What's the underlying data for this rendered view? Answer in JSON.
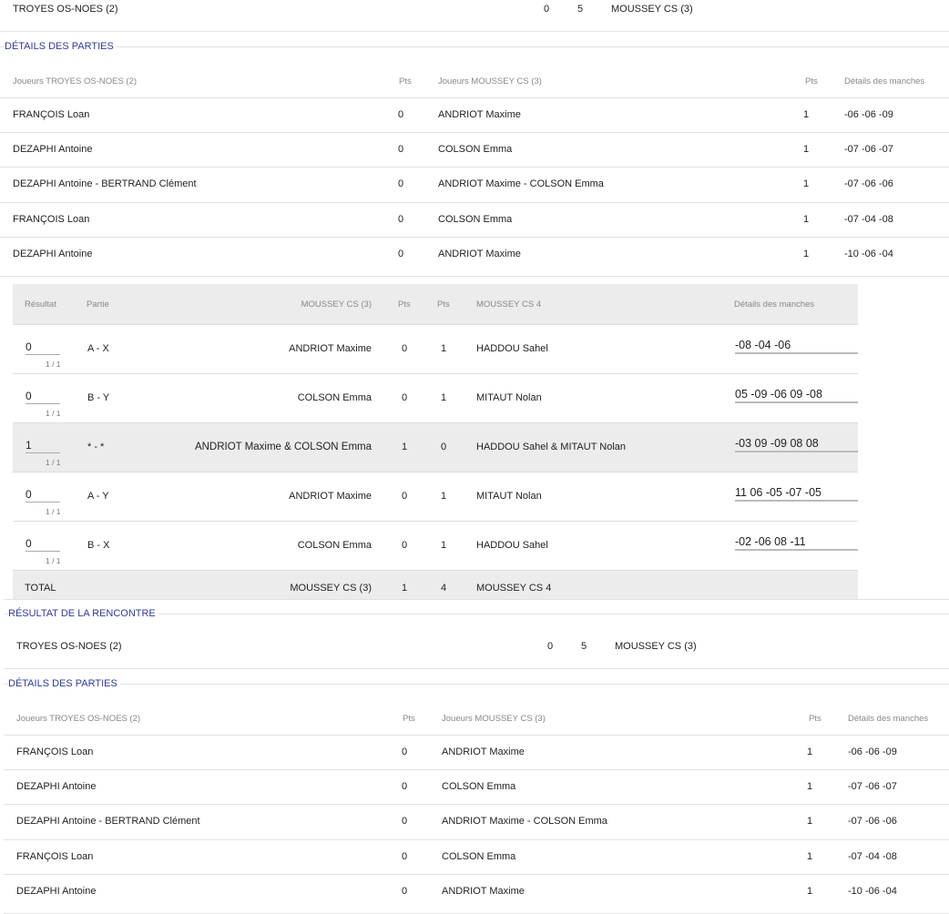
{
  "result_top": {
    "home": "TROYES OS-NOES (2)",
    "home_score": "0",
    "away_score": "5",
    "away": "MOUSSEY CS (3)"
  },
  "details": {
    "legend": "DÉTAILS DES PARTIES",
    "headers": {
      "home_players": "Joueurs TROYES OS-NOES (2)",
      "home_pts": "Pts",
      "away_players": "Joueurs MOUSSEY CS (3)",
      "away_pts": "Pts",
      "sets": "Détails des manches"
    },
    "rows": [
      {
        "home": "FRANÇOIS Loan",
        "home_pts": "0",
        "away": "ANDRIOT Maxime",
        "away_pts": "1",
        "sets": "-06 -06 -09"
      },
      {
        "home": "DEZAPHI Antoine",
        "home_pts": "0",
        "away": "COLSON Emma",
        "away_pts": "1",
        "sets": "-07 -06 -07"
      },
      {
        "home": "DEZAPHI Antoine - BERTRAND Clément",
        "home_pts": "0",
        "away": "ANDRIOT Maxime - COLSON Emma",
        "away_pts": "1",
        "sets": "-07 -06 -06"
      },
      {
        "home": "FRANÇOIS Loan",
        "home_pts": "0",
        "away": "COLSON Emma",
        "away_pts": "1",
        "sets": "-07 -04 -08"
      },
      {
        "home": "DEZAPHI Antoine",
        "home_pts": "0",
        "away": "ANDRIOT Maxime",
        "away_pts": "1",
        "sets": "-10 -06 -04"
      }
    ]
  },
  "feuille": {
    "headers": {
      "result": "Résultat",
      "partie": "Partie",
      "team_a": "MOUSSEY CS (3)",
      "pts_a": "Pts",
      "pts_b": "Pts",
      "team_b": "MOUSSEY CS 4",
      "sets": "Détails des manches"
    },
    "rows": [
      {
        "result": "0",
        "frac": "1 / 1",
        "partie": "A - X",
        "player_a": "ANDRIOT Maxime",
        "pts_a": "0",
        "pts_b": "1",
        "player_b": "HADDOU Sahel",
        "sets": "-08 -04 -06"
      },
      {
        "result": "0",
        "frac": "1 / 1",
        "partie": "B - Y",
        "player_a": "COLSON Emma",
        "pts_a": "0",
        "pts_b": "1",
        "player_b": "MITAUT Nolan",
        "sets": "05 -09 -06 09 -08"
      },
      {
        "result": "1",
        "frac": "1 / 1",
        "partie": "* - *",
        "player_a": "ANDRIOT Maxime & COLSON Emma",
        "pts_a": "1",
        "pts_b": "0",
        "player_b": "HADDOU Sahel & MITAUT Nolan",
        "sets": "-03 09 -09 08 08"
      },
      {
        "result": "0",
        "frac": "1 / 1",
        "partie": "A - Y",
        "player_a": "ANDRIOT Maxime",
        "pts_a": "0",
        "pts_b": "1",
        "player_b": "MITAUT Nolan",
        "sets": "11 06 -05 -07 -05"
      },
      {
        "result": "0",
        "frac": "1 / 1",
        "partie": "B - X",
        "player_a": "COLSON Emma",
        "pts_a": "0",
        "pts_b": "1",
        "player_b": "HADDOU Sahel",
        "sets": "-02 -06 08 -11"
      }
    ],
    "total": {
      "label": "TOTAL",
      "team_a": "MOUSSEY CS (3)",
      "pts_a": "1",
      "pts_b": "4",
      "team_b": "MOUSSEY CS 4"
    }
  },
  "rencontre": {
    "legend": "RÉSULTAT DE LA RENCONTRE",
    "home": "TROYES OS-NOES (2)",
    "home_score": "0",
    "away_score": "5",
    "away": "MOUSSEY CS (3)"
  },
  "colors": {
    "legend": "#2f3a9e",
    "grey_row": "#ececec"
  }
}
